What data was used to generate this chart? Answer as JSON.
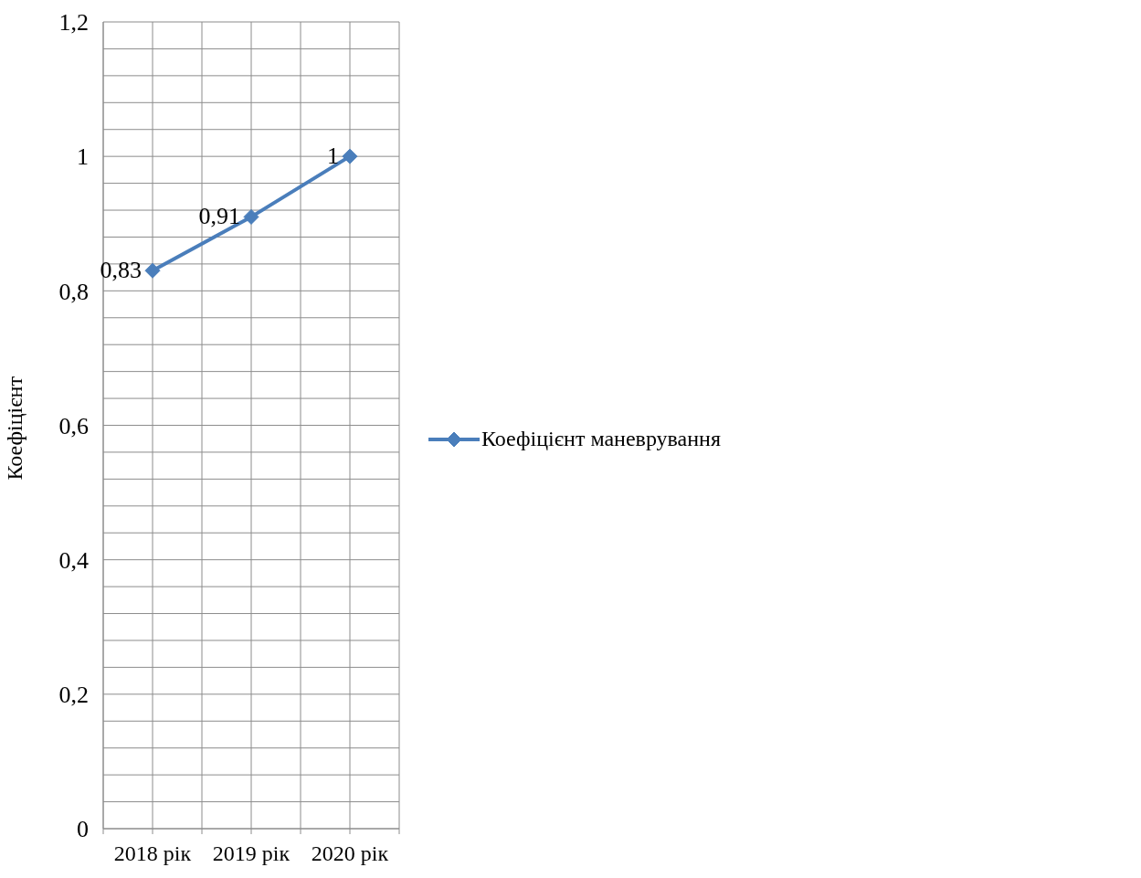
{
  "chart_data": {
    "type": "line",
    "ylabel": "Коефіцієнт",
    "categories": [
      "2018 рік",
      "2019 рік",
      "2020 рік"
    ],
    "series": [
      {
        "name": "Коефіцієнт маневрування",
        "color": "#4a7ebb",
        "values": [
          0.83,
          0.91,
          1
        ],
        "value_labels": [
          "0,83",
          "0,91",
          "1"
        ]
      }
    ],
    "ylim": [
      0,
      1.2
    ],
    "yticks": [
      {
        "value": 0,
        "label": "0"
      },
      {
        "value": 0.04,
        "label": null
      },
      {
        "value": 0.08,
        "label": null
      },
      {
        "value": 0.12,
        "label": null
      },
      {
        "value": 0.16,
        "label": null
      },
      {
        "value": 0.2,
        "label": "0,2"
      },
      {
        "value": 0.24,
        "label": null
      },
      {
        "value": 0.28,
        "label": null
      },
      {
        "value": 0.32,
        "label": null
      },
      {
        "value": 0.36,
        "label": null
      },
      {
        "value": 0.4,
        "label": "0,4"
      },
      {
        "value": 0.44,
        "label": null
      },
      {
        "value": 0.48,
        "label": null
      },
      {
        "value": 0.52,
        "label": null
      },
      {
        "value": 0.56,
        "label": null
      },
      {
        "value": 0.6,
        "label": "0,6"
      },
      {
        "value": 0.64,
        "label": null
      },
      {
        "value": 0.68,
        "label": null
      },
      {
        "value": 0.72,
        "label": null
      },
      {
        "value": 0.76,
        "label": null
      },
      {
        "value": 0.8,
        "label": "0,8"
      },
      {
        "value": 0.84,
        "label": null
      },
      {
        "value": 0.88,
        "label": null
      },
      {
        "value": 0.92,
        "label": null
      },
      {
        "value": 0.96,
        "label": null
      },
      {
        "value": 1,
        "label": "1"
      },
      {
        "value": 1.04,
        "label": null
      },
      {
        "value": 1.08,
        "label": null
      },
      {
        "value": 1.12,
        "label": null
      },
      {
        "value": 1.16,
        "label": null
      },
      {
        "value": 1.2,
        "label": "1,2"
      }
    ],
    "grid": true,
    "legend": "right",
    "marker": "diamond",
    "line_style": "solid"
  }
}
